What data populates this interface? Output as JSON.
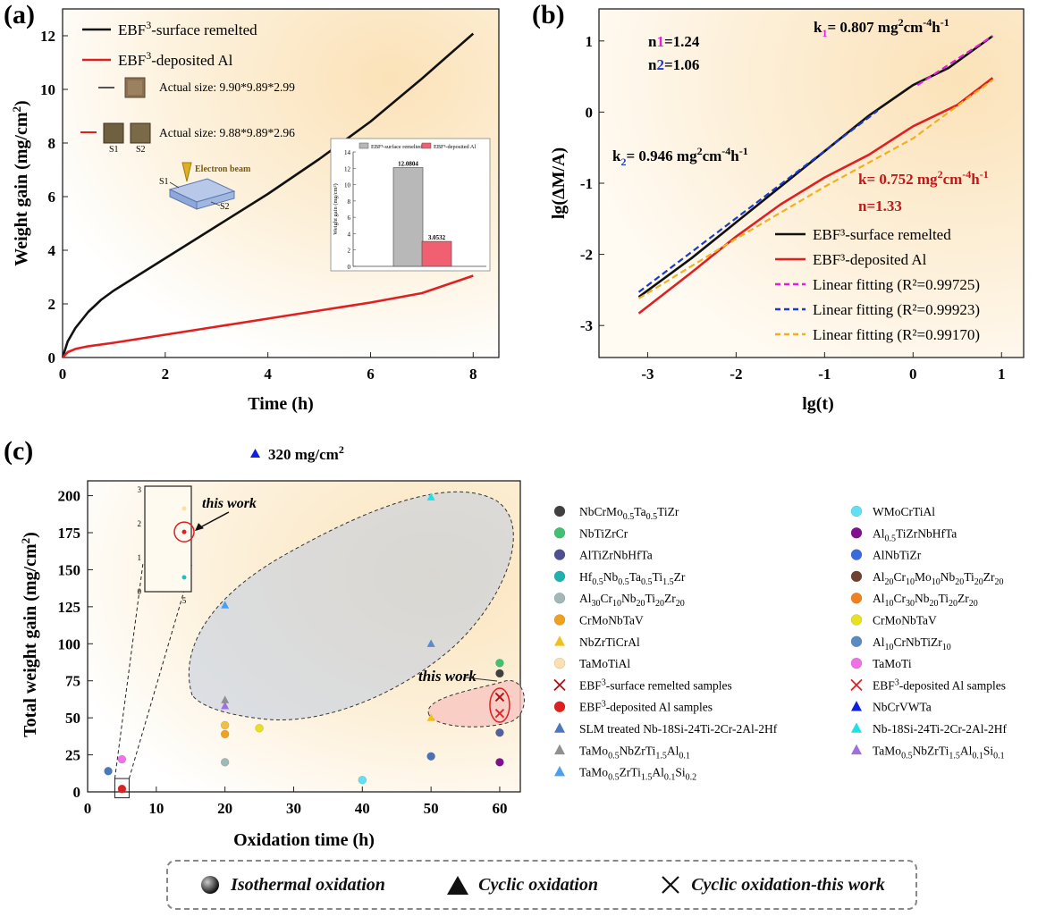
{
  "panels": {
    "a": {
      "label": "(a)"
    },
    "b": {
      "label": "(b)"
    },
    "c": {
      "label": "(c)"
    }
  },
  "colors": {
    "black_series": "#111111",
    "red_series": "#e02020",
    "magenta_fit": "#e020e0",
    "blue_fit": "#1a3ad0",
    "yellow_fit": "#f0b020",
    "bg_warm": "#fbe9c8"
  },
  "chart_data": [
    {
      "id": "a",
      "type": "line",
      "xlabel": "Time (h)",
      "ylabel": "Weight gain (mg/cm2)",
      "xlim": [
        0,
        8.5
      ],
      "ylim": [
        0,
        13
      ],
      "xticks": [
        0,
        2,
        4,
        6,
        8
      ],
      "yticks": [
        0,
        2,
        4,
        6,
        8,
        10,
        12
      ],
      "series": [
        {
          "name": "EBF3-surface remelted",
          "color": "#111111",
          "x": [
            0,
            0.1,
            0.25,
            0.5,
            0.75,
            1,
            1.5,
            2,
            3,
            4,
            5,
            6,
            7,
            8
          ],
          "y": [
            0,
            0.6,
            1.1,
            1.7,
            2.15,
            2.5,
            3.1,
            3.7,
            4.9,
            6.1,
            7.4,
            8.8,
            10.4,
            12.08
          ]
        },
        {
          "name": "EBF3-deposited Al",
          "color": "#e02020",
          "x": [
            0,
            0.1,
            0.25,
            0.5,
            1,
            2,
            3,
            4,
            5,
            6,
            7,
            8
          ],
          "y": [
            0,
            0.2,
            0.32,
            0.42,
            0.55,
            0.85,
            1.15,
            1.45,
            1.75,
            2.05,
            2.4,
            3.05
          ]
        }
      ],
      "legend": [
        {
          "text": "EBF³-surface remelted",
          "color": "#111111"
        },
        {
          "text": "EBF³-deposited Al",
          "color": "#e02020"
        }
      ],
      "sample_notes": [
        "Actual size: 9.90*9.89*2.99",
        "Actual size: 9.88*9.89*2.96"
      ],
      "sample_labels": [
        "S1",
        "S2"
      ],
      "schematic": {
        "beam": "Electron beam",
        "s1": "S1",
        "s2": "S2"
      },
      "inset": {
        "type": "bar",
        "ylabel": "Weight gain (mg/cm²)",
        "ylim": [
          0,
          14
        ],
        "yticks": [
          0,
          2,
          4,
          6,
          8,
          10,
          12,
          14
        ],
        "categories": [
          "EBF³-surface remelted",
          "EBF³-deposited Al"
        ],
        "values": [
          12.0804,
          3.0532
        ],
        "value_labels": [
          "12.0804",
          "3.0532"
        ],
        "colors": [
          "#b8b8b8",
          "#f06070"
        ]
      }
    },
    {
      "id": "b",
      "type": "line",
      "xlabel": "lg(t)",
      "ylabel": "lg(ΔM/A)",
      "xlim": [
        -3.55,
        1.25
      ],
      "ylim": [
        -3.45,
        1.45
      ],
      "xticks": [
        -3,
        -2,
        -1,
        0,
        1
      ],
      "yticks": [
        -3,
        -2,
        -1,
        0,
        1
      ],
      "series": [
        {
          "name": "EBF³-surface remelted",
          "color": "#111111",
          "x": [
            -3.1,
            -2.5,
            -2,
            -1.5,
            -1,
            -0.5,
            0,
            0.4,
            0.9
          ],
          "y": [
            -2.6,
            -2.05,
            -1.55,
            -1.05,
            -0.55,
            -0.05,
            0.38,
            0.62,
            1.07
          ]
        },
        {
          "name": "EBF³-deposited Al",
          "color": "#e02020",
          "x": [
            -3.1,
            -2.5,
            -2,
            -1.5,
            -1,
            -0.5,
            0,
            0.5,
            0.9
          ],
          "y": [
            -2.83,
            -2.25,
            -1.75,
            -1.3,
            -0.92,
            -0.6,
            -0.2,
            0.1,
            0.48
          ]
        },
        {
          "name": "Linear fitting (R²=0.99725)",
          "color": "#e020e0",
          "dashed": true,
          "x": [
            0.05,
            0.9
          ],
          "y": [
            0.38,
            1.07
          ]
        },
        {
          "name": "Linear fitting (R²=0.99923)",
          "color": "#1a3ad0",
          "dashed": true,
          "x": [
            -3.1,
            -0.4
          ],
          "y": [
            -2.53,
            0.02
          ]
        },
        {
          "name": "Linear fitting (R²=0.99170)",
          "color": "#f0b020",
          "dashed": true,
          "x": [
            -3.1,
            -2,
            -1,
            0,
            0.9
          ],
          "y": [
            -2.62,
            -1.78,
            -1.05,
            -0.37,
            0.45
          ]
        }
      ],
      "legend": [
        {
          "text": "EBF³-surface remelted",
          "color": "#111111",
          "dashed": false
        },
        {
          "text": "EBF³-deposited Al",
          "color": "#e02020",
          "dashed": false
        },
        {
          "text": "Linear fitting (R²=0.99725)",
          "color": "#e020e0",
          "dashed": true
        },
        {
          "text": "Linear fitting (R²=0.99923)",
          "color": "#1a3ad0",
          "dashed": true
        },
        {
          "text": "Linear fitting (R²=0.99170)",
          "color": "#f0b020",
          "dashed": true
        }
      ],
      "annotations": {
        "n1": "n1=1.24",
        "n2": "n2=1.06",
        "k1": "k1= 0.807 mg²cm⁻⁴h⁻¹",
        "k2": "k2= 0.946 mg²cm⁻⁴h⁻¹",
        "k": "k= 0.752 mg²cm⁻⁴h⁻¹",
        "n": "n=1.33"
      }
    },
    {
      "id": "c",
      "type": "scatter",
      "xlabel": "Oxidation time (h)",
      "ylabel": "Total weight gain (mg/cm²)",
      "xlim": [
        0,
        63
      ],
      "ylim": [
        0,
        210
      ],
      "xticks": [
        0,
        10,
        20,
        30,
        40,
        50,
        60
      ],
      "yticks": [
        0,
        25,
        50,
        75,
        100,
        125,
        150,
        175,
        200
      ],
      "outlier_label": "320 mg/cm²",
      "this_work_label": "this work",
      "points": [
        {
          "x": 3,
          "y": 14,
          "color": "#4a78c0",
          "shape": "circle"
        },
        {
          "x": 5,
          "y": 22,
          "color": "#f070e8",
          "shape": "circle"
        },
        {
          "x": 5,
          "y": 2,
          "color": "#e02020",
          "shape": "circle"
        },
        {
          "x": 20,
          "y": 20,
          "color": "#a0b8b8",
          "shape": "circle"
        },
        {
          "x": 20,
          "y": 39,
          "color": "#f0a020",
          "shape": "circle"
        },
        {
          "x": 20,
          "y": 45,
          "color": "#f0c040",
          "shape": "circle"
        },
        {
          "x": 20,
          "y": 62,
          "color": "#909090",
          "shape": "triangle"
        },
        {
          "x": 20,
          "y": 58,
          "color": "#a070e0",
          "shape": "triangle"
        },
        {
          "x": 20,
          "y": 126,
          "color": "#4aa0f0",
          "shape": "triangle"
        },
        {
          "x": 25,
          "y": 43,
          "color": "#e8e020",
          "shape": "circle"
        },
        {
          "x": 40,
          "y": 8,
          "color": "#60e0f0",
          "shape": "circle"
        },
        {
          "x": 50,
          "y": 199,
          "color": "#20e0e8",
          "shape": "triangle"
        },
        {
          "x": 50,
          "y": 100,
          "color": "#5a8ad0",
          "shape": "triangle"
        },
        {
          "x": 50,
          "y": 50,
          "color": "#f0c020",
          "shape": "triangle"
        },
        {
          "x": 50,
          "y": 24,
          "color": "#4a70b8",
          "shape": "circle"
        },
        {
          "x": 60,
          "y": 87,
          "color": "#40c070",
          "shape": "circle"
        },
        {
          "x": 60,
          "y": 80,
          "color": "#404040",
          "shape": "circle"
        },
        {
          "x": 60,
          "y": 40,
          "color": "#5060a0",
          "shape": "circle"
        },
        {
          "x": 60,
          "y": 20,
          "color": "#801090",
          "shape": "circle"
        },
        {
          "x": 60,
          "y": 64,
          "color": "#b01010",
          "shape": "cross"
        },
        {
          "x": 60,
          "y": 53,
          "color": "#e02020",
          "shape": "cross"
        }
      ],
      "outlier_point": {
        "y": 320,
        "color": "#1020e0",
        "shape": "triangle"
      },
      "inset": {
        "ylim": [
          0,
          3
        ],
        "yticks": [
          0,
          1,
          2,
          3
        ],
        "xticks": [
          5
        ],
        "points": [
          {
            "x": 5,
            "y": 1.76,
            "color": "#e02020"
          },
          {
            "x": 5,
            "y": 0.42,
            "color": "#20c0c0"
          },
          {
            "x": 5,
            "y": 2.45,
            "color": "#fbe0a0"
          }
        ]
      },
      "legend_left": [
        {
          "text": "NbCrMo0.5Ta0.5TiZr",
          "color": "#404040",
          "shape": "circle"
        },
        {
          "text": "NbTiZrCr",
          "color": "#40c070",
          "shape": "circle"
        },
        {
          "text": "AlTiZrNbHfTa",
          "color": "#505090",
          "shape": "circle"
        },
        {
          "text": "Hf0.5Nb0.5Ta0.5Ti1.5Zr",
          "color": "#20b0b0",
          "shape": "circle"
        },
        {
          "text": "Al30Cr10Nb20Ti20Zr20",
          "color": "#a0b8b8",
          "shape": "circle"
        },
        {
          "text": "CrMoNbTaV",
          "color": "#f0a020",
          "shape": "circle"
        },
        {
          "text": "NbZrTiCrAl",
          "color": "#f0c020",
          "shape": "triangle"
        },
        {
          "text": "TaMoTiAl",
          "color": "#fbe0b0",
          "shape": "circle"
        },
        {
          "text": "EBF³-surface remelted samples",
          "color": "#b01010",
          "shape": "cross"
        },
        {
          "text": "EBF³-deposited Al samples",
          "color": "#e02020",
          "shape": "circle"
        },
        {
          "text": "SLM treated Nb-18Si-24Ti-2Cr-2Al-2Hf",
          "color": "#4a78c0",
          "shape": "triangle"
        },
        {
          "text": "TaMo0.5NbZrTi1.5Al0.1",
          "color": "#909090",
          "shape": "triangle"
        },
        {
          "text": "TaMo0.5ZrTi1.5Al0.1Si0.2",
          "color": "#4aa0f0",
          "shape": "triangle"
        }
      ],
      "legend_right": [
        {
          "text": "WMoCrTiAl",
          "color": "#60e0f0",
          "shape": "circle"
        },
        {
          "text": "Al0.5TiZrNbHfTa",
          "color": "#801090",
          "shape": "circle"
        },
        {
          "text": "AlNbTiZr",
          "color": "#3a6ae0",
          "shape": "circle"
        },
        {
          "text": "Al20Cr10Mo10Nb20Ti20Zr20",
          "color": "#704030",
          "shape": "circle"
        },
        {
          "text": "Al10Cr30Nb20Ti20Zr20",
          "color": "#f08020",
          "shape": "circle"
        },
        {
          "text": "CrMoNbTaV",
          "color": "#e8e020",
          "shape": "circle"
        },
        {
          "text": "Al10CrNbTiZr10",
          "color": "#5a8ac0",
          "shape": "circle"
        },
        {
          "text": "TaMoTi",
          "color": "#f070e8",
          "shape": "circle"
        },
        {
          "text": "EBF³-deposited Al samples",
          "color": "#e02020",
          "shape": "cross"
        },
        {
          "text": "NbCrVWTa",
          "color": "#1020e0",
          "shape": "triangle"
        },
        {
          "text": "Nb-18Si-24Ti-2Cr-2Al-2Hf",
          "color": "#20e0e8",
          "shape": "triangle"
        },
        {
          "text": "TaMo0.5NbZrTi1.5Al0.1Si0.1",
          "color": "#a070e0",
          "shape": "triangle"
        }
      ]
    }
  ],
  "bottom_legend": {
    "isothermal": "Isothermal oxidation",
    "cyclic": "Cyclic oxidation",
    "cyclic_this_work": "Cyclic oxidation-this work"
  }
}
